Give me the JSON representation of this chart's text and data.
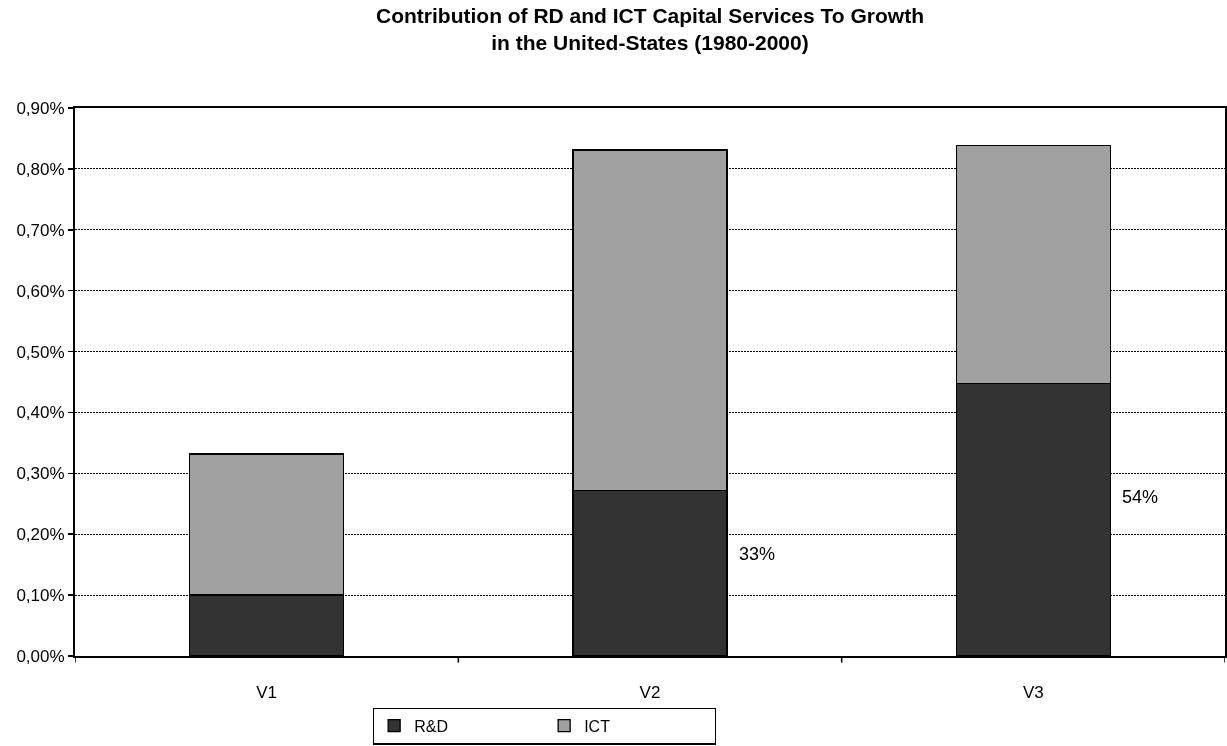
{
  "chart_data": {
    "type": "bar",
    "title": "Contribution of RD and ICT Capital Services To Growth\nin the United-States (1980-2000)",
    "categories": [
      "V1",
      "V2",
      "V3"
    ],
    "series": [
      {
        "name": "R&D",
        "color": "#333333",
        "values": [
          0.1,
          0.272,
          0.448
        ]
      },
      {
        "name": "ICT",
        "color": "#a0a0a0",
        "values": [
          0.232,
          0.559,
          0.39
        ]
      }
    ],
    "stacked": true,
    "ylim": [
      0,
      0.9
    ],
    "yticks": [
      {
        "value": 0,
        "label": "0,00%"
      },
      {
        "value": 0.1,
        "label": "0,10%"
      },
      {
        "value": 0.2,
        "label": "0,20%"
      },
      {
        "value": 0.3,
        "label": "0,30%"
      },
      {
        "value": 0.4,
        "label": "0,40%"
      },
      {
        "value": 0.5,
        "label": "0,50%"
      },
      {
        "value": 0.6,
        "label": "0,60%"
      },
      {
        "value": 0.7,
        "label": "0,70%"
      },
      {
        "value": 0.8,
        "label": "0,80%"
      },
      {
        "value": 0.9,
        "label": "0,90%"
      }
    ],
    "annotations": [
      "33%",
      "54%"
    ],
    "grid": "y",
    "legend": "bottom"
  }
}
